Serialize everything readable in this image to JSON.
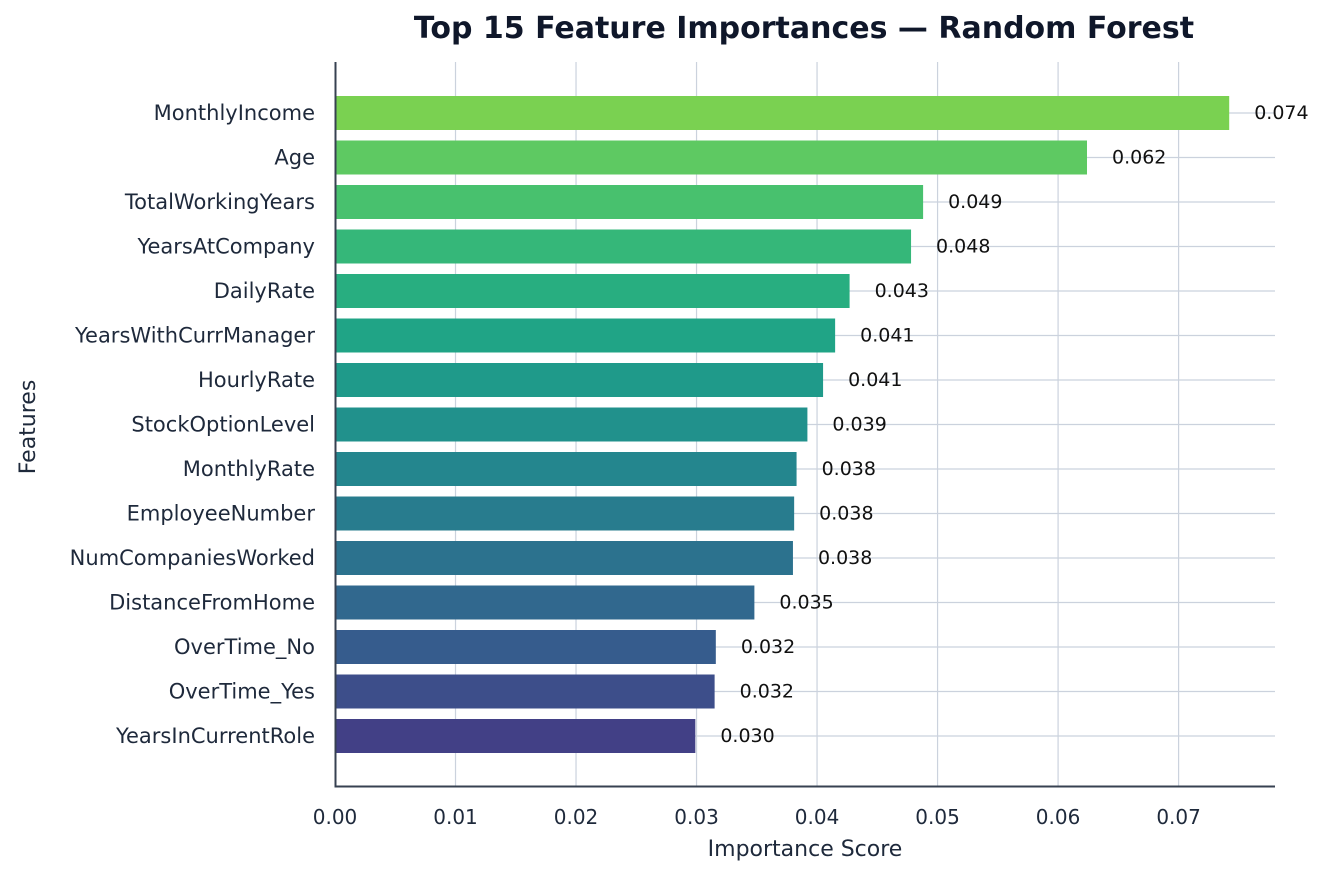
{
  "chart_data": {
    "type": "bar",
    "orientation": "horizontal",
    "title": "Top 15 Feature Importances — Random Forest",
    "xlabel": "Importance Score",
    "ylabel": "Features",
    "xlim": [
      0,
      0.078
    ],
    "x_ticks": [
      0.0,
      0.01,
      0.02,
      0.03,
      0.04,
      0.05,
      0.06,
      0.07
    ],
    "x_tick_labels": [
      "0.00",
      "0.01",
      "0.02",
      "0.03",
      "0.04",
      "0.05",
      "0.06",
      "0.07"
    ],
    "grid": true,
    "legend": "none",
    "categories": [
      "MonthlyIncome",
      "Age",
      "TotalWorkingYears",
      "YearsAtCompany",
      "DailyRate",
      "YearsWithCurrManager",
      "HourlyRate",
      "StockOptionLevel",
      "MonthlyRate",
      "EmployeeNumber",
      "NumCompaniesWorked",
      "DistanceFromHome",
      "OverTime_No",
      "OverTime_Yes",
      "YearsInCurrentRole"
    ],
    "values": [
      0.0742,
      0.0624,
      0.0488,
      0.0478,
      0.0427,
      0.0415,
      0.0405,
      0.0392,
      0.0383,
      0.0381,
      0.038,
      0.0348,
      0.0316,
      0.0315,
      0.0299
    ],
    "value_labels": [
      "0.074",
      "0.062",
      "0.049",
      "0.048",
      "0.043",
      "0.041",
      "0.041",
      "0.039",
      "0.038",
      "0.038",
      "0.038",
      "0.035",
      "0.032",
      "0.032",
      "0.030"
    ],
    "colors": [
      "#7ad151",
      "#5ec962",
      "#48c16e",
      "#35b779",
      "#28ae80",
      "#20a486",
      "#1f9a8a",
      "#21918c",
      "#24868e",
      "#287c8e",
      "#2c728e",
      "#31688e",
      "#365c8d",
      "#3d4e8a",
      "#424086"
    ]
  }
}
